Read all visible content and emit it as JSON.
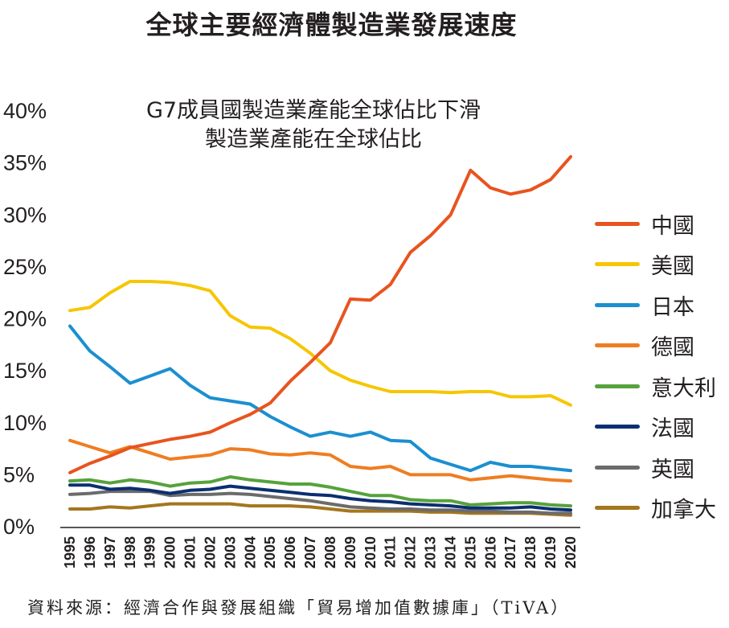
{
  "header": {
    "title": "全球主要經濟體製造業發展速度",
    "subtitle_line1": "G7成員國製造業產能全球佔比下滑",
    "subtitle_line2": "製造業產能在全球佔比"
  },
  "footer": {
    "source": "資料來源：經濟合作與發展組織「貿易增加值數據庫」（TiVA）"
  },
  "chart_data": {
    "type": "line",
    "title": "G7成員國製造業產能全球佔比下滑",
    "subtitle": "製造業產能在全球佔比",
    "xlabel": "",
    "ylabel": "",
    "ylim": [
      0,
      40
    ],
    "yticks": [
      "0%",
      "5%",
      "10%",
      "15%",
      "20%",
      "25%",
      "30%",
      "35%",
      "40%"
    ],
    "categories": [
      "1995",
      "1996",
      "1997",
      "1998",
      "1999",
      "2000",
      "2001",
      "2002",
      "2003",
      "2004",
      "2005",
      "2006",
      "2007",
      "2008",
      "2009",
      "2010",
      "2011",
      "2012",
      "2013",
      "2014",
      "2015",
      "2016",
      "2017",
      "2018",
      "2019",
      "2020"
    ],
    "legend_position": "right",
    "grid": false,
    "series": [
      {
        "name": "中國",
        "color": "#e8541e",
        "values": [
          5.2,
          6.1,
          6.8,
          7.6,
          8.0,
          8.4,
          8.7,
          9.1,
          10.0,
          10.8,
          11.9,
          14.0,
          15.8,
          17.7,
          21.9,
          21.8,
          23.3,
          26.4,
          28.0,
          30.0,
          34.3,
          32.6,
          32.0,
          32.4,
          33.4,
          35.6
        ]
      },
      {
        "name": "美國",
        "color": "#f6c600",
        "values": [
          20.8,
          21.1,
          22.5,
          23.6,
          23.6,
          23.5,
          23.2,
          22.7,
          20.3,
          19.2,
          19.1,
          18.1,
          16.7,
          15.0,
          14.1,
          13.5,
          13.0,
          13.0,
          13.0,
          12.9,
          13.0,
          13.0,
          12.5,
          12.5,
          12.6,
          11.7
        ]
      },
      {
        "name": "日本",
        "color": "#1b8fd0",
        "values": [
          19.3,
          16.9,
          15.4,
          13.8,
          14.5,
          15.2,
          13.6,
          12.4,
          12.1,
          11.8,
          10.6,
          9.6,
          8.7,
          9.1,
          8.7,
          9.1,
          8.3,
          8.2,
          6.6,
          6.0,
          5.4,
          6.2,
          5.8,
          5.8,
          5.6,
          5.4
        ]
      },
      {
        "name": "德國",
        "color": "#ef7d22",
        "values": [
          8.3,
          7.7,
          7.1,
          7.7,
          7.1,
          6.5,
          6.7,
          6.9,
          7.5,
          7.4,
          7.0,
          6.9,
          7.1,
          6.9,
          5.8,
          5.6,
          5.8,
          5.0,
          5.0,
          5.0,
          4.5,
          4.7,
          4.9,
          4.7,
          4.5,
          4.4
        ]
      },
      {
        "name": "意大利",
        "color": "#56a23c",
        "values": [
          4.4,
          4.5,
          4.2,
          4.5,
          4.3,
          3.9,
          4.2,
          4.3,
          4.8,
          4.5,
          4.3,
          4.1,
          4.1,
          3.8,
          3.4,
          3.0,
          3.0,
          2.6,
          2.5,
          2.5,
          2.1,
          2.2,
          2.3,
          2.3,
          2.1,
          2.0
        ]
      },
      {
        "name": "法國",
        "color": "#0b2f70",
        "values": [
          4.0,
          4.0,
          3.6,
          3.7,
          3.5,
          3.2,
          3.5,
          3.6,
          3.9,
          3.7,
          3.5,
          3.3,
          3.1,
          3.0,
          2.7,
          2.5,
          2.4,
          2.2,
          2.1,
          2.0,
          1.8,
          1.8,
          1.8,
          1.9,
          1.7,
          1.6
        ]
      },
      {
        "name": "英國",
        "color": "#6b6b6b",
        "values": [
          3.1,
          3.2,
          3.4,
          3.4,
          3.4,
          3.0,
          3.1,
          3.1,
          3.2,
          3.1,
          2.9,
          2.7,
          2.5,
          2.2,
          1.9,
          1.8,
          1.7,
          1.7,
          1.6,
          1.6,
          1.5,
          1.5,
          1.4,
          1.4,
          1.3,
          1.3
        ]
      },
      {
        "name": "加拿大",
        "color": "#a4761d",
        "values": [
          1.7,
          1.7,
          1.9,
          1.8,
          2.0,
          2.2,
          2.2,
          2.2,
          2.2,
          2.0,
          2.0,
          2.0,
          1.9,
          1.7,
          1.5,
          1.5,
          1.5,
          1.5,
          1.4,
          1.4,
          1.3,
          1.3,
          1.3,
          1.3,
          1.2,
          1.1
        ]
      }
    ]
  }
}
